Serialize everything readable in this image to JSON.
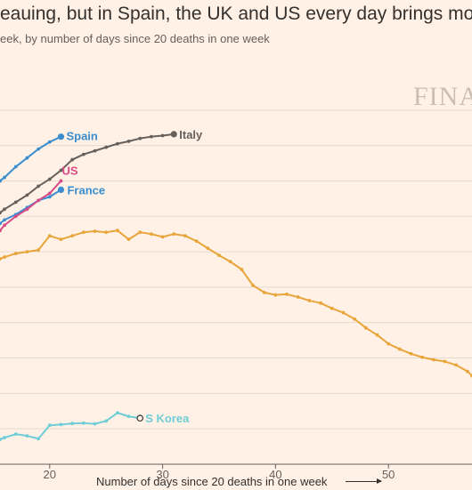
{
  "title": "eauing, but in Spain, the UK and US every day brings mo",
  "subtitle": "eek, by number of days since 20 deaths in one week",
  "watermark": "FINA",
  "chart_data": {
    "type": "line",
    "title": "eauing, but in Spain, the UK and US every day brings mo",
    "subtitle": "eek, by number of days since 20 deaths in one week",
    "xlabel": "Number of days since 20 deaths in one week",
    "ylabel": "",
    "xlim": [
      15.6,
      57.4
    ],
    "ylim": [
      0,
      11
    ],
    "x_ticks": [
      20,
      30,
      40,
      50
    ],
    "grid": true,
    "series": [
      {
        "name": "Spain",
        "color": "#3a8ecf",
        "end_marker": "filled",
        "points": [
          [
            15.6,
            8.0
          ],
          [
            16,
            8.1
          ],
          [
            17,
            8.4
          ],
          [
            18,
            8.65
          ],
          [
            19,
            8.9
          ],
          [
            20,
            9.1
          ],
          [
            21,
            9.25
          ]
        ]
      },
      {
        "name": "Italy",
        "color": "#66605c",
        "end_marker": "filled",
        "points": [
          [
            15.6,
            7.1
          ],
          [
            16,
            7.2
          ],
          [
            17,
            7.4
          ],
          [
            18,
            7.6
          ],
          [
            19,
            7.85
          ],
          [
            20,
            8.05
          ],
          [
            21,
            8.3
          ],
          [
            22,
            8.6
          ],
          [
            23,
            8.75
          ],
          [
            24,
            8.85
          ],
          [
            25,
            8.95
          ],
          [
            26,
            9.05
          ],
          [
            27,
            9.12
          ],
          [
            28,
            9.2
          ],
          [
            29,
            9.25
          ],
          [
            30,
            9.28
          ],
          [
            31,
            9.32
          ]
        ]
      },
      {
        "name": "US",
        "color": "#d84b86",
        "end_marker": "none",
        "points": [
          [
            15.6,
            6.6
          ],
          [
            16,
            6.75
          ],
          [
            17,
            7.0
          ],
          [
            18,
            7.2
          ],
          [
            19,
            7.45
          ],
          [
            20,
            7.65
          ],
          [
            21,
            8.0
          ]
        ]
      },
      {
        "name": "France",
        "color": "#3a8ecf",
        "end_marker": "filled",
        "points": [
          [
            15.6,
            6.8
          ],
          [
            16,
            6.9
          ],
          [
            17,
            7.05
          ],
          [
            18,
            7.25
          ],
          [
            19,
            7.45
          ],
          [
            20,
            7.55
          ],
          [
            21,
            7.75
          ]
        ]
      },
      {
        "name": "",
        "color": "#e8a53a",
        "end_marker": "none",
        "points": [
          [
            15.6,
            5.8
          ],
          [
            16,
            5.85
          ],
          [
            17,
            5.95
          ],
          [
            18,
            6.0
          ],
          [
            19,
            6.05
          ],
          [
            20,
            6.45
          ],
          [
            21,
            6.35
          ],
          [
            22,
            6.45
          ],
          [
            23,
            6.55
          ],
          [
            24,
            6.58
          ],
          [
            25,
            6.55
          ],
          [
            26,
            6.6
          ],
          [
            27,
            6.35
          ],
          [
            28,
            6.55
          ],
          [
            29,
            6.5
          ],
          [
            30,
            6.42
          ],
          [
            31,
            6.5
          ],
          [
            32,
            6.45
          ],
          [
            33,
            6.3
          ],
          [
            34,
            6.1
          ],
          [
            35,
            5.9
          ],
          [
            36,
            5.72
          ],
          [
            37,
            5.5
          ],
          [
            38,
            5.05
          ],
          [
            39,
            4.85
          ],
          [
            40,
            4.78
          ],
          [
            41,
            4.8
          ],
          [
            42,
            4.72
          ],
          [
            43,
            4.62
          ],
          [
            44,
            4.55
          ],
          [
            45,
            4.4
          ],
          [
            46,
            4.28
          ],
          [
            47,
            4.1
          ],
          [
            48,
            3.85
          ],
          [
            49,
            3.65
          ],
          [
            50,
            3.4
          ],
          [
            51,
            3.25
          ],
          [
            52,
            3.12
          ],
          [
            53,
            3.02
          ],
          [
            54,
            2.95
          ],
          [
            55,
            2.9
          ],
          [
            56,
            2.8
          ],
          [
            57,
            2.62
          ],
          [
            57.4,
            2.5
          ]
        ]
      },
      {
        "name": "S Korea",
        "color": "#6fcdd8",
        "end_marker": "open",
        "points": [
          [
            15.6,
            0.7
          ],
          [
            16,
            0.75
          ],
          [
            17,
            0.85
          ],
          [
            18,
            0.8
          ],
          [
            19,
            0.72
          ],
          [
            20,
            1.1
          ],
          [
            21,
            1.12
          ],
          [
            22,
            1.15
          ],
          [
            23,
            1.16
          ],
          [
            24,
            1.14
          ],
          [
            25,
            1.22
          ],
          [
            26,
            1.45
          ],
          [
            27,
            1.35
          ],
          [
            28,
            1.3
          ]
        ]
      }
    ]
  }
}
